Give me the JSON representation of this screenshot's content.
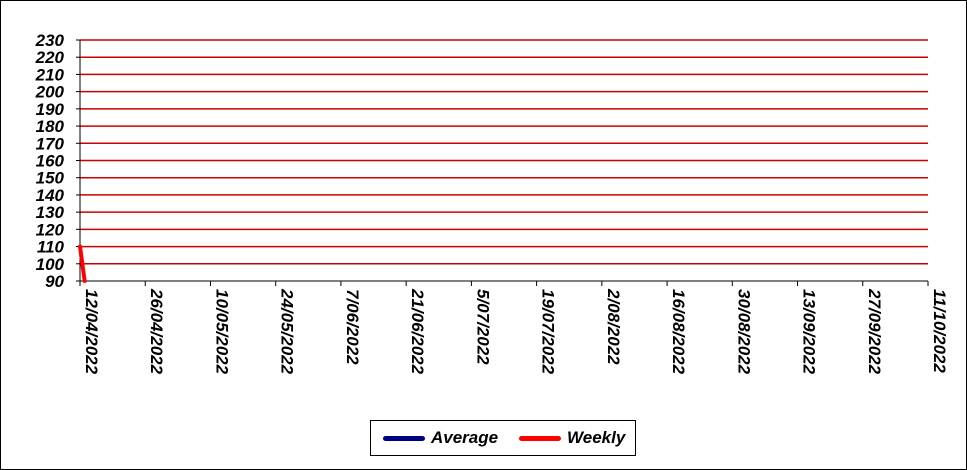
{
  "chart_data": {
    "type": "line",
    "title": "",
    "xlabel": "",
    "ylabel": "",
    "ylim": [
      90,
      230
    ],
    "yticks": [
      90,
      100,
      110,
      120,
      130,
      140,
      150,
      160,
      170,
      180,
      190,
      200,
      210,
      220,
      230
    ],
    "xticks": [
      "12/04/2022",
      "26/04/2022",
      "10/05/2022",
      "24/05/2022",
      "7/06/2022",
      "21/06/2022",
      "5/07/2022",
      "19/07/2022",
      "2/08/2022",
      "16/08/2022",
      "30/08/2022",
      "13/09/2022",
      "27/09/2022",
      "11/10/2022"
    ],
    "grid": true,
    "gridColor": "#cc0000",
    "legend": "bottom",
    "series": [
      {
        "name": "Average",
        "color": "#000080",
        "points": []
      },
      {
        "name": "Weekly",
        "color": "#ff0000",
        "points": [
          {
            "x": "12/04/2022",
            "y": 110
          },
          {
            "x": "13/04/2022",
            "y": 90
          }
        ]
      }
    ]
  }
}
